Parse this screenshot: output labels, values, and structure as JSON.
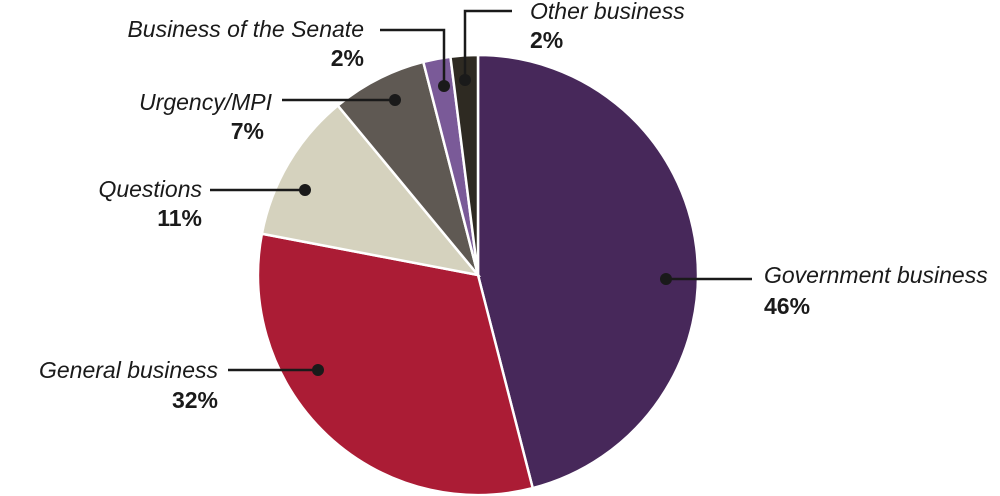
{
  "chart_data": {
    "type": "pie",
    "title": "",
    "slices": [
      {
        "label": "Government business",
        "value": 46,
        "value_label": "46%",
        "color": "#47285a"
      },
      {
        "label": "General business",
        "value": 32,
        "value_label": "32%",
        "color": "#ab1c35"
      },
      {
        "label": "Questions",
        "value": 11,
        "value_label": "11%",
        "color": "#d5d2be"
      },
      {
        "label": "Urgency/MPI",
        "value": 7,
        "value_label": "7%",
        "color": "#5f5953"
      },
      {
        "label": "Business of the Senate",
        "value": 2,
        "value_label": "2%",
        "color": "#7a5a98"
      },
      {
        "label": "Other business",
        "value": 2,
        "value_label": "2%",
        "color": "#2e2a22"
      }
    ]
  }
}
